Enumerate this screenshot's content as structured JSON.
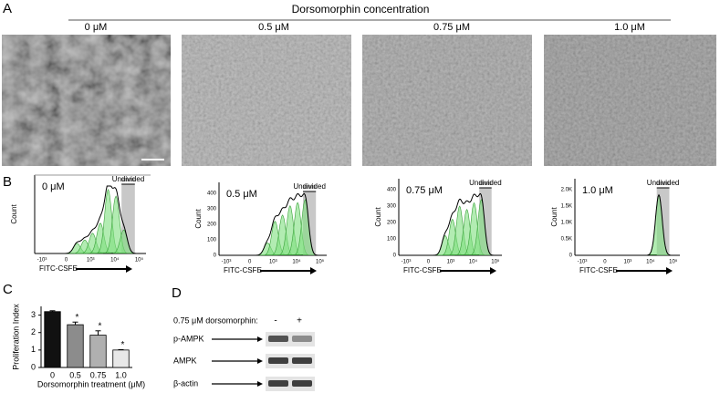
{
  "panel_labels": [
    "A",
    "B",
    "C",
    "D"
  ],
  "panel_a": {
    "title": "Dorsomorphin concentration",
    "images": [
      "0 μM",
      "0.5 μM",
      "0.75 μM",
      "1.0 μM"
    ]
  },
  "panel_b": {
    "histograms": [
      {
        "label": "0 μM",
        "gate": "Undivided",
        "ylabel": "Count",
        "xlabel": "FITC-CSFE",
        "xticks": [
          "-10³",
          "0",
          "10³",
          "10⁴",
          "10⁵"
        ]
      },
      {
        "label": "0.5 μM",
        "gate": "Undivided",
        "ylabel": "Count",
        "xlabel": "FITC-CSFE",
        "yticks": [
          "0",
          "100",
          "200",
          "300",
          "400"
        ],
        "xticks": [
          "-10³",
          "0",
          "10³",
          "10⁴",
          "10⁵"
        ]
      },
      {
        "label": "0.75 μM",
        "gate": "Undivided",
        "ylabel": "Count",
        "xlabel": "FITC-CSFE",
        "yticks": [
          "0",
          "100",
          "200",
          "300",
          "400"
        ],
        "xticks": [
          "-10³",
          "0",
          "10³",
          "10⁴",
          "10⁵"
        ]
      },
      {
        "label": "1.0 μM",
        "gate": "Undivided",
        "ylabel": "Count",
        "xlabel": "FITC-CSFE",
        "yticks": [
          "0",
          "0.5K",
          "1.0K",
          "1.5K",
          "2.0K"
        ],
        "xticks": [
          "-10³",
          "0",
          "10³",
          "10⁴",
          "10⁵"
        ]
      }
    ]
  },
  "chart_data": {
    "type": "bar",
    "ylabel": "Proliferation Index",
    "xlabel": "Dorsomorphin treatment (μM)",
    "categories": [
      "0",
      "0.5",
      "0.75",
      "1.0"
    ],
    "values": [
      3.2,
      2.45,
      1.85,
      1.0
    ],
    "errors": [
      0.05,
      0.15,
      0.25,
      0.02
    ],
    "significance": [
      null,
      "*",
      "*",
      "*"
    ],
    "colors": [
      "#111111",
      "#8c8c8c",
      "#b0b0b0",
      "#e8e8e8"
    ],
    "ylim": [
      0,
      3.5
    ],
    "yticks": [
      0,
      1,
      2,
      3
    ]
  },
  "panel_d": {
    "condition": "0.75 μM dorsomorphin:",
    "lanes": [
      "-",
      "+"
    ],
    "blots": [
      "p-AMPK",
      "AMPK",
      "β-actin"
    ]
  }
}
